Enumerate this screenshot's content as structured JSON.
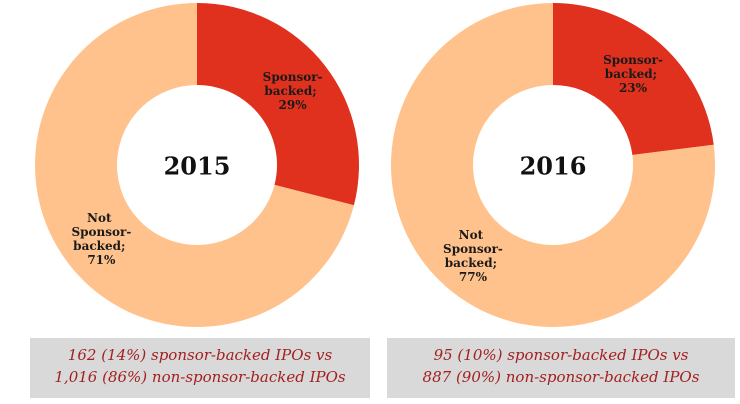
{
  "chart_data": [
    {
      "type": "donut",
      "title": "2015",
      "categories": [
        "Sponsor-backed",
        "Not Sponsor-backed"
      ],
      "values": [
        29,
        71
      ],
      "value_labels": [
        "Sponsor-backed; 29%",
        "Not Sponsor-backed; 71%"
      ],
      "colors": [
        "#e0301e",
        "#ffc28c"
      ],
      "caption": [
        "162 (14%) sponsor-backed IPOs vs",
        "1,016 (86%) non-sponsor-backed IPOs"
      ]
    },
    {
      "type": "donut",
      "title": "2016",
      "categories": [
        "Sponsor-backed",
        "Not Sponsor-backed"
      ],
      "values": [
        23,
        77
      ],
      "value_labels": [
        "Sponsor-backed; 23%",
        "Not Sponsor-backed; 77%"
      ],
      "colors": [
        "#e0301e",
        "#ffc28c"
      ],
      "caption": [
        "95 (10%) sponsor-backed IPOs vs",
        "887 (90%) non-sponsor-backed IPOs"
      ]
    }
  ]
}
